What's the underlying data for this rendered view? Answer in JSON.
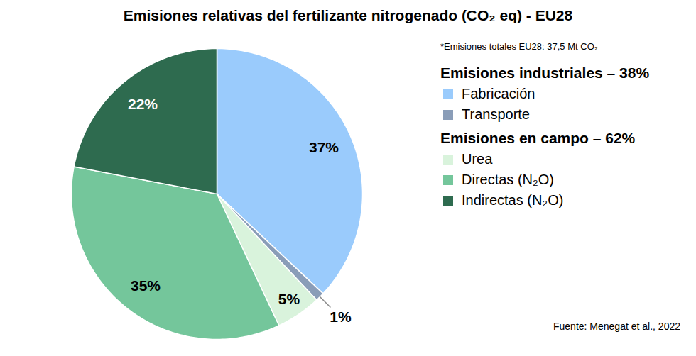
{
  "chart_data": {
    "type": "pie",
    "title": "Emisiones relativas del fertilizante nitrogenado (CO₂ eq) - EU28",
    "note": "*Emisiones totales EU28: 37,5 Mt CO₂",
    "source": "Fuente: Menegat et al., 2022",
    "categories": [
      "Fabricación",
      "Transporte",
      "Urea",
      "Directas (N₂O)",
      "Indirectas (N₂O)"
    ],
    "values": [
      37,
      1,
      5,
      35,
      22
    ],
    "value_labels": [
      "37%",
      "1%",
      "5%",
      "35%",
      "22%"
    ],
    "colors": [
      "#9ACBFC",
      "#8A9DB8",
      "#D9F3DC",
      "#74C69B",
      "#2E6B4F"
    ],
    "data_labels": true,
    "legend": "right",
    "groups": [
      {
        "label": "Emisiones industriales – 38%",
        "categories": [
          "Fabricación",
          "Transporte"
        ]
      },
      {
        "label": "Emisiones en campo – 62%",
        "categories": [
          "Urea",
          "Directas (N₂O)",
          "Indirectas (N₂O)"
        ]
      }
    ]
  }
}
